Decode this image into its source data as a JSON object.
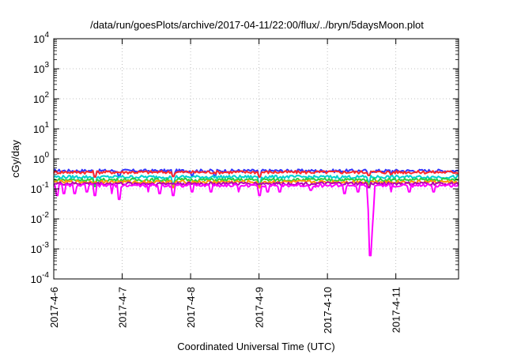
{
  "chart_data": {
    "type": "line",
    "title": "/data/run/goesPlots/archive/2017-04-11/22:00/flux/../bryn/5daysMoon.plot",
    "xlabel": "Coordinated Universal Time (UTC)",
    "ylabel": "cGy/day",
    "y_scale": "log",
    "ylim": [
      0.0001,
      10000
    ],
    "y_ticks": [
      {
        "base": "10",
        "exp": "-4",
        "value": 0.0001
      },
      {
        "base": "10",
        "exp": "-3",
        "value": 0.001
      },
      {
        "base": "10",
        "exp": "-2",
        "value": 0.01
      },
      {
        "base": "10",
        "exp": "-1",
        "value": 0.1
      },
      {
        "base": "10",
        "exp": "0",
        "value": 1
      },
      {
        "base": "10",
        "exp": "1",
        "value": 10
      },
      {
        "base": "10",
        "exp": "2",
        "value": 100
      },
      {
        "base": "10",
        "exp": "3",
        "value": 1000
      },
      {
        "base": "10",
        "exp": "4",
        "value": 10000
      }
    ],
    "xlim": [
      "2017-04-06",
      "2017-04-11 22:00"
    ],
    "x_ticks": [
      "2017-4-6",
      "2017-4-7",
      "2017-4-8",
      "2017-4-9",
      "2017-4-10",
      "2017-4-11"
    ],
    "grid": true,
    "series": [
      {
        "color": "#3333ff",
        "level": 0.4,
        "dips": [
          [
            0.6,
            0.25
          ],
          [
            0.95,
            0.27
          ],
          [
            1.75,
            0.26
          ],
          [
            2.02,
            0.28
          ],
          [
            2.35,
            0.27
          ],
          [
            3.0,
            0.25
          ],
          [
            4.6,
            0.28
          ],
          [
            4.93,
            0.28
          ]
        ]
      },
      {
        "color": "#ff2a2a",
        "level": 0.36,
        "dips": [
          [
            0.6,
            0.25
          ],
          [
            1.75,
            0.26
          ],
          [
            3.0,
            0.25
          ],
          [
            4.6,
            0.28
          ],
          [
            4.93,
            0.27
          ]
        ]
      },
      {
        "color": "#00d0d0",
        "level": 0.25,
        "dips": [
          [
            0.6,
            0.14
          ],
          [
            1.75,
            0.15
          ],
          [
            3.0,
            0.14
          ],
          [
            4.6,
            0.17
          ]
        ]
      },
      {
        "color": "#2ecc40",
        "level": 0.2,
        "dips": [
          [
            0.6,
            0.12
          ],
          [
            1.75,
            0.12
          ],
          [
            3.0,
            0.12
          ],
          [
            4.6,
            0.14
          ]
        ]
      },
      {
        "color": "#ff9900",
        "level": 0.17,
        "dips": [
          [
            1.75,
            0.11
          ],
          [
            3.0,
            0.11
          ],
          [
            4.6,
            0.12
          ]
        ]
      },
      {
        "color": "#b000b0",
        "level": 0.15,
        "dips": [
          [
            4.6,
            0.11
          ]
        ]
      },
      {
        "color": "#ff00ff",
        "level": 0.13,
        "dips": [
          [
            0.05,
            0.06
          ],
          [
            0.15,
            0.07
          ],
          [
            0.3,
            0.07
          ],
          [
            0.48,
            0.08
          ],
          [
            0.6,
            0.06
          ],
          [
            0.85,
            0.07
          ],
          [
            0.95,
            0.045
          ],
          [
            1.38,
            0.08
          ],
          [
            1.55,
            0.07
          ],
          [
            1.75,
            0.06
          ],
          [
            2.02,
            0.08
          ],
          [
            2.3,
            0.08
          ],
          [
            2.7,
            0.08
          ],
          [
            3.0,
            0.06
          ],
          [
            3.12,
            0.08
          ],
          [
            3.3,
            0.08
          ],
          [
            3.75,
            0.09
          ],
          [
            4.25,
            0.07
          ],
          [
            4.45,
            0.08
          ],
          [
            4.6,
            0.02
          ],
          [
            4.62,
            0.004
          ],
          [
            4.63,
            0.0006
          ],
          [
            4.64,
            0.004
          ],
          [
            4.66,
            0.02
          ],
          [
            4.93,
            0.08
          ],
          [
            5.2,
            0.08
          ],
          [
            5.55,
            0.08
          ]
        ]
      }
    ]
  }
}
